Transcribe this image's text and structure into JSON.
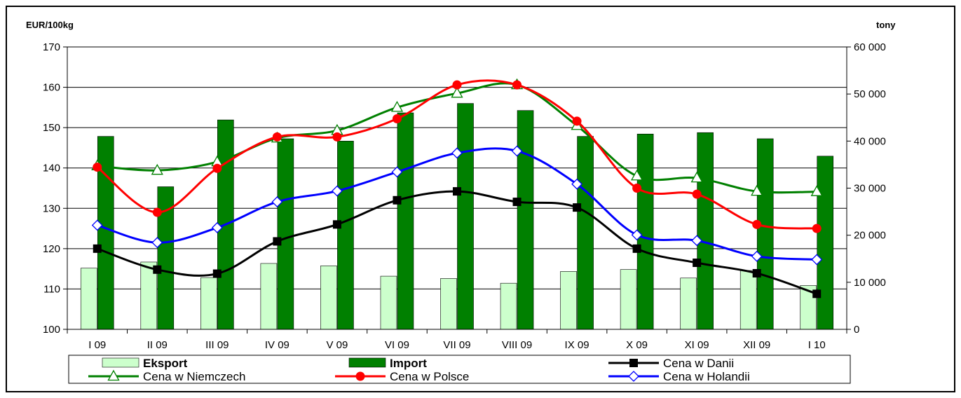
{
  "chart_data": {
    "type": "bar",
    "left_axis_unit": "EUR/100kg",
    "right_axis_unit": "tony",
    "categories": [
      "I 09",
      "II 09",
      "III 09",
      "IV 09",
      "V 09",
      "VI 09",
      "VII 09",
      "VIII 09",
      "IX 09",
      "X 09",
      "XI 09",
      "XII 09",
      "I 10"
    ],
    "y_left": {
      "min": 100,
      "max": 170,
      "step": 10,
      "ticks": [
        "100",
        "110",
        "120",
        "130",
        "140",
        "150",
        "160",
        "170"
      ]
    },
    "y_right": {
      "min": 0,
      "max": 60000,
      "step": 10000,
      "ticks": [
        "0",
        "10 000",
        "20 000",
        "30 000",
        "40 000",
        "50 000",
        "60 000"
      ]
    },
    "grid": "horizontal",
    "legend_position": "bottom",
    "bars": [
      {
        "name": "Eksport",
        "axis": "right",
        "color": "#ccffcc",
        "values": [
          13000,
          14300,
          11000,
          14000,
          13500,
          11300,
          10800,
          9800,
          12300,
          12700,
          10900,
          12500,
          9300
        ]
      },
      {
        "name": "Import",
        "axis": "right",
        "color": "#008000",
        "values": [
          41000,
          30300,
          44500,
          40500,
          40000,
          46000,
          48000,
          46500,
          41000,
          41500,
          41800,
          40500,
          36800
        ]
      }
    ],
    "lines": [
      {
        "name": "Cena w Danii",
        "axis": "left",
        "color": "#000000",
        "marker": "square",
        "values": [
          120.0,
          114.8,
          113.8,
          121.8,
          126.0,
          132.0,
          134.2,
          131.6,
          130.2,
          120.0,
          116.5,
          113.9,
          108.8
        ]
      },
      {
        "name": "Cena w Niemczech",
        "axis": "left",
        "color": "#008000",
        "marker": "triangle-open",
        "values": [
          140.5,
          139.4,
          141.5,
          147.4,
          149.3,
          155.0,
          158.5,
          160.6,
          150.5,
          138.0,
          137.5,
          134.2,
          134.1
        ]
      },
      {
        "name": "Cena w Polsce",
        "axis": "left",
        "color": "#ff0000",
        "marker": "circle",
        "values": [
          140.2,
          129.0,
          139.9,
          147.7,
          147.7,
          152.2,
          160.6,
          160.6,
          151.6,
          135.0,
          133.5,
          126.0,
          125.0
        ]
      },
      {
        "name": "Cena w Holandii",
        "axis": "left",
        "color": "#0000ff",
        "marker": "diamond-open",
        "values": [
          125.8,
          121.5,
          125.2,
          131.6,
          134.3,
          139.0,
          143.7,
          144.2,
          136.0,
          123.4,
          122.0,
          118.1,
          117.3
        ]
      }
    ]
  }
}
